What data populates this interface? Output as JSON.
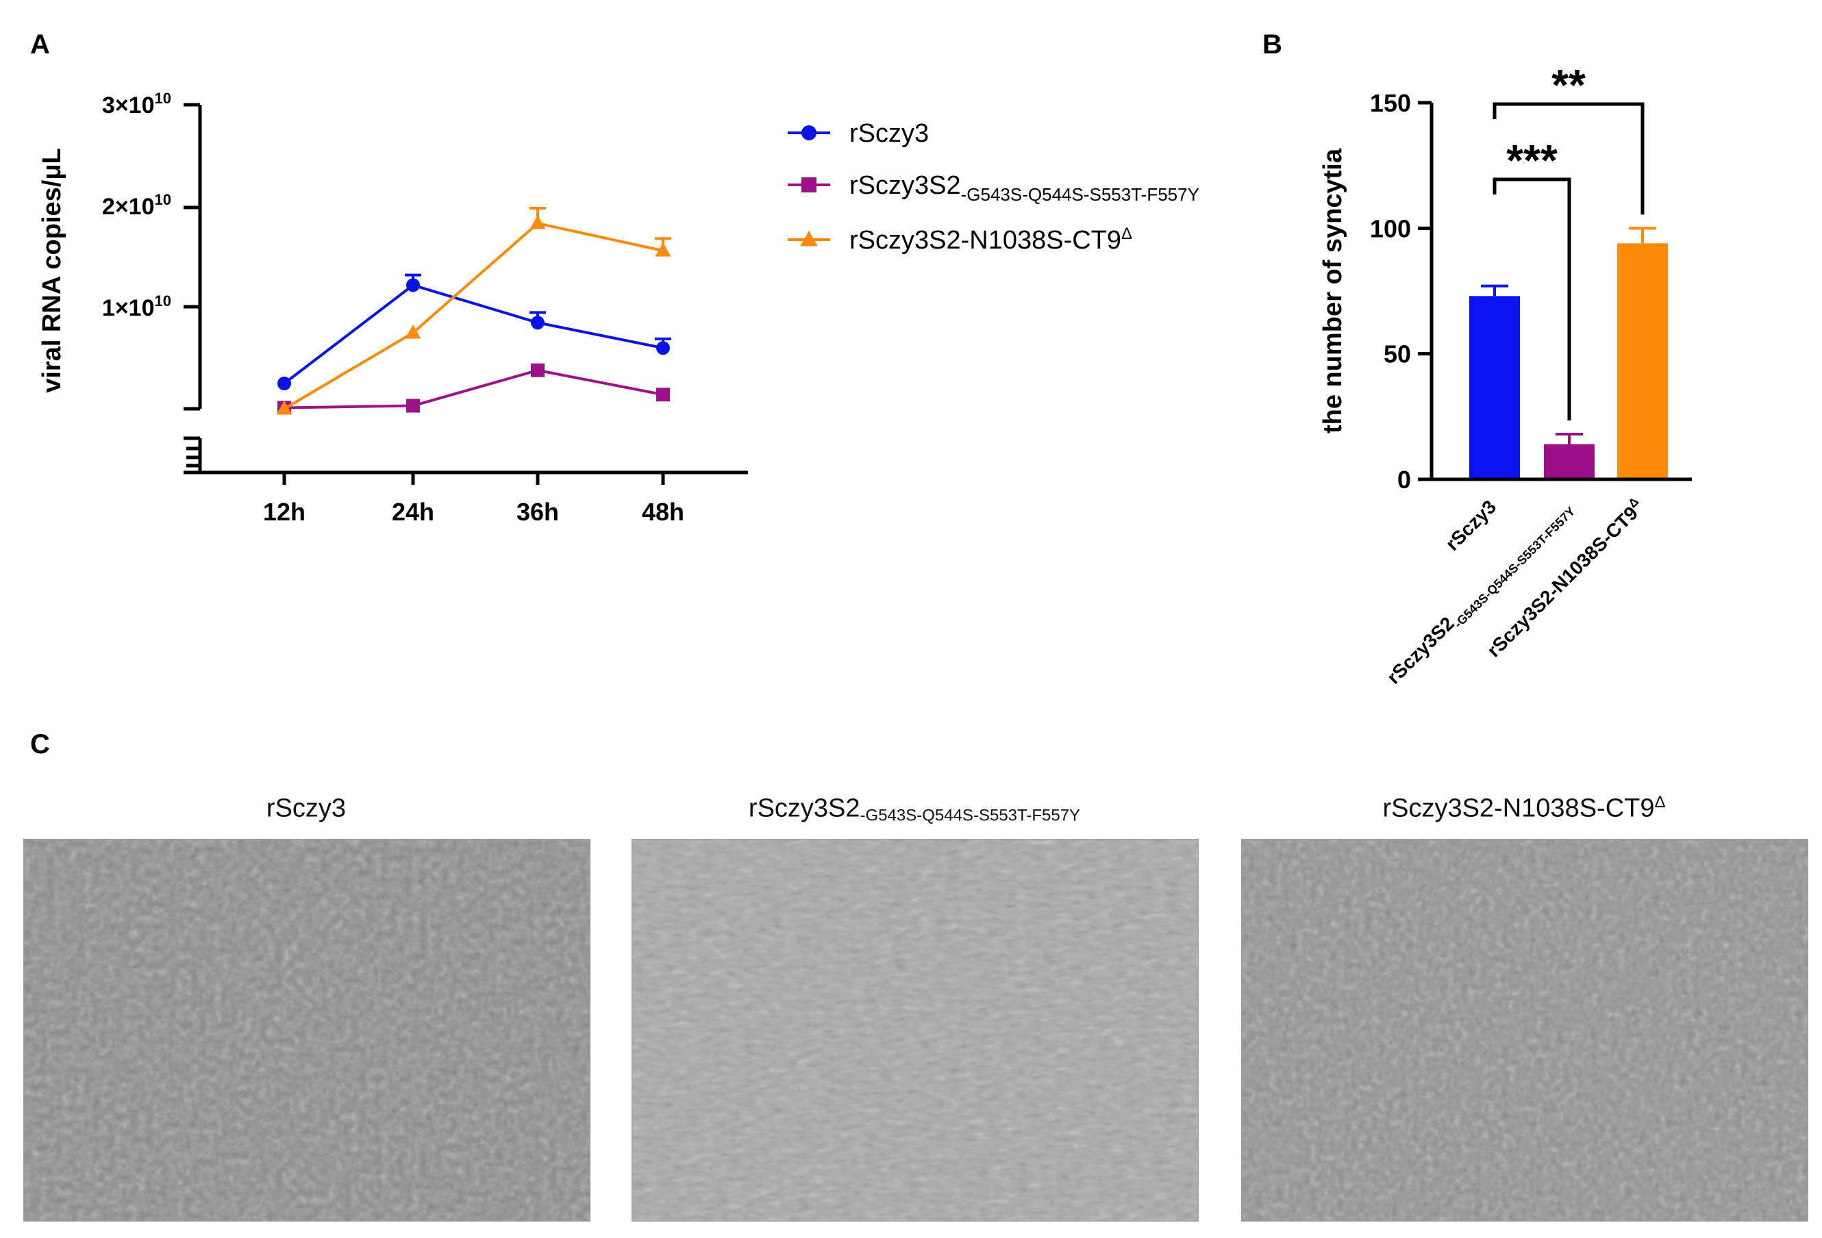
{
  "panel_labels": {
    "a": "A",
    "b": "B",
    "c": "C"
  },
  "chart_data": [
    {
      "id": "A",
      "type": "line",
      "title": "",
      "xlabel": "",
      "ylabel": "viral RNA copies/μL",
      "categories": [
        "12h",
        "24h",
        "36h",
        "48h"
      ],
      "y_tick_labels": {
        "base": "×10",
        "exp": "10",
        "items": [
          {
            "value": 10000000000.0,
            "mantissa": "1"
          },
          {
            "value": 20000000000.0,
            "mantissa": "2"
          },
          {
            "value": 30000000000.0,
            "mantissa": "3"
          }
        ]
      },
      "ylim": [
        0,
        30000000000.0
      ],
      "y_axis_break": true,
      "series": [
        {
          "name": "rSczy3",
          "name_sub": "",
          "name_sup": "",
          "color": "#0a14e6",
          "marker": "circle",
          "values": [
            2500000000.0,
            12200000000.0,
            8500000000.0,
            6000000000.0
          ],
          "errors": [
            0,
            1000000000.0,
            1000000000.0,
            900000000.0
          ]
        },
        {
          "name": "rSczy3S2",
          "name_sub": "-G543S-Q544S-S553T-F557Y",
          "name_sup": "",
          "color": "#9c1289",
          "marker": "square",
          "values": [
            100000000.0,
            300000000.0,
            3800000000.0,
            1400000000.0
          ],
          "errors": [
            0,
            0,
            0,
            0
          ]
        },
        {
          "name": "rSczy3S2-N1038S-CT9",
          "name_sub": "",
          "name_sup": "Δ",
          "color": "#ff8a0a",
          "marker": "triangle",
          "values": [
            0.0,
            7500000000.0,
            18300000000.0,
            15600000000.0
          ],
          "errors": [
            0,
            0,
            1500000000.0,
            1200000000.0
          ]
        }
      ],
      "legend_position": "right"
    },
    {
      "id": "B",
      "type": "bar",
      "title": "",
      "xlabel": "",
      "ylabel": "the number of syncytia",
      "ylim": [
        0,
        150
      ],
      "yticks": [
        0,
        50,
        100,
        150
      ],
      "categories": [
        {
          "label": "rSczy3",
          "sub": "",
          "sup": ""
        },
        {
          "label": "rSczy3S2",
          "sub": "-G543S-Q544S-S553T-F557Y",
          "sup": ""
        },
        {
          "label": "rSczy3S2-N1038S-CT9",
          "sub": "",
          "sup": "Δ"
        }
      ],
      "values": [
        73,
        14,
        94
      ],
      "errors": [
        4,
        4,
        6
      ],
      "colors": [
        "#0a14f0",
        "#990f88",
        "#ff8a0a"
      ],
      "significance": [
        {
          "from": 0,
          "to": 2,
          "label": "**"
        },
        {
          "from": 0,
          "to": 1,
          "label": "***"
        }
      ]
    }
  ],
  "micrographs": [
    {
      "title": "rSczy3",
      "sub": "",
      "sup": "",
      "tone": "#8c8c8c"
    },
    {
      "title": "rSczy3S2",
      "sub": "-G543S-Q544S-S553T-F557Y",
      "sup": "",
      "tone": "#a8a8a8"
    },
    {
      "title": "rSczy3S2-N1038S-CT9",
      "sub": "",
      "sup": "Δ",
      "tone": "#929292"
    }
  ]
}
